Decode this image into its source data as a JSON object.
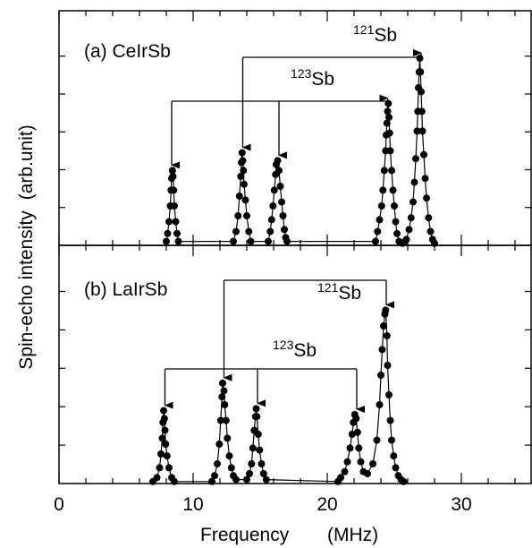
{
  "chart_data": {
    "type": "scatter",
    "xlabel": "Frequency",
    "xunit": "(MHz)",
    "ylabel": "Spin-echo intensity",
    "yunit": "(arb.unit)",
    "xlim": [
      0,
      35
    ],
    "xticks": [
      "0",
      "10",
      "20",
      "30"
    ],
    "ylim": [
      0,
      1
    ],
    "grid": false,
    "panels": [
      {
        "label": "(a) CeIrSb",
        "series": [
          {
            "values": [
              [
                8.0,
                0.02
              ],
              [
                8.1,
                0.06
              ],
              [
                8.2,
                0.12
              ],
              [
                8.3,
                0.2
              ],
              [
                8.35,
                0.28
              ],
              [
                8.4,
                0.34
              ],
              [
                8.45,
                0.38
              ],
              [
                8.5,
                0.35
              ],
              [
                8.55,
                0.28
              ],
              [
                8.6,
                0.2
              ],
              [
                8.7,
                0.12
              ],
              [
                8.8,
                0.06
              ],
              [
                8.9,
                0.02
              ],
              [
                13.0,
                0.02
              ],
              [
                13.2,
                0.07
              ],
              [
                13.35,
                0.15
              ],
              [
                13.45,
                0.25
              ],
              [
                13.55,
                0.35
              ],
              [
                13.6,
                0.42
              ],
              [
                13.65,
                0.47
              ],
              [
                13.7,
                0.43
              ],
              [
                13.75,
                0.38
              ],
              [
                13.8,
                0.31
              ],
              [
                13.9,
                0.23
              ],
              [
                14.0,
                0.15
              ],
              [
                14.15,
                0.07
              ],
              [
                14.3,
                0.02
              ],
              [
                15.6,
                0.02
              ],
              [
                15.75,
                0.07
              ],
              [
                15.85,
                0.13
              ],
              [
                15.95,
                0.2
              ],
              [
                16.05,
                0.28
              ],
              [
                16.15,
                0.36
              ],
              [
                16.2,
                0.41
              ],
              [
                16.3,
                0.43
              ],
              [
                16.4,
                0.38
              ],
              [
                16.5,
                0.3
              ],
              [
                16.6,
                0.22
              ],
              [
                16.7,
                0.15
              ],
              [
                16.8,
                0.08
              ],
              [
                16.9,
                0.04
              ],
              [
                17.0,
                0.02
              ],
              [
                23.6,
                0.02
              ],
              [
                23.75,
                0.07
              ],
              [
                23.9,
                0.13
              ],
              [
                24.05,
                0.2
              ],
              [
                24.15,
                0.28
              ],
              [
                24.25,
                0.38
              ],
              [
                24.35,
                0.48
              ],
              [
                24.4,
                0.56
              ],
              [
                24.45,
                0.62
              ],
              [
                24.5,
                0.68
              ],
              [
                24.55,
                0.72
              ],
              [
                24.6,
                0.65
              ],
              [
                24.65,
                0.57
              ],
              [
                24.7,
                0.48
              ],
              [
                24.8,
                0.38
              ],
              [
                24.9,
                0.28
              ],
              [
                25.0,
                0.2
              ],
              [
                25.1,
                0.12
              ],
              [
                25.2,
                0.06
              ],
              [
                25.35,
                0.02
              ],
              [
                25.6,
                0.01
              ],
              [
                25.8,
                0.02
              ],
              [
                25.9,
                0.03
              ],
              [
                26.1,
                0.08
              ],
              [
                26.25,
                0.14
              ],
              [
                26.4,
                0.22
              ],
              [
                26.5,
                0.32
              ],
              [
                26.6,
                0.44
              ],
              [
                26.7,
                0.58
              ],
              [
                26.75,
                0.68
              ],
              [
                26.8,
                0.8
              ],
              [
                26.85,
                0.88
              ],
              [
                26.9,
                0.95
              ],
              [
                26.95,
                0.88
              ],
              [
                27.0,
                0.78
              ],
              [
                27.05,
                0.68
              ],
              [
                27.1,
                0.58
              ],
              [
                27.2,
                0.46
              ],
              [
                27.3,
                0.34
              ],
              [
                27.4,
                0.24
              ],
              [
                27.55,
                0.14
              ],
              [
                27.7,
                0.07
              ],
              [
                27.85,
                0.03
              ],
              [
                28.0,
                0.01
              ]
            ]
          }
        ],
        "annotations": [
          {
            "text": "Sb",
            "sup": "121",
            "peaks": [
              13.7,
              27.0
            ]
          },
          {
            "text": "Sb",
            "sup": "123",
            "peaks": [
              8.4,
              16.4,
              24.5
            ]
          }
        ]
      },
      {
        "label": "(b) LaIrSb",
        "series": [
          {
            "values": [
              [
                7.0,
                0.01
              ],
              [
                7.3,
                0.03
              ],
              [
                7.5,
                0.08
              ],
              [
                7.6,
                0.15
              ],
              [
                7.7,
                0.23
              ],
              [
                7.75,
                0.31
              ],
              [
                7.8,
                0.37
              ],
              [
                7.85,
                0.33
              ],
              [
                7.9,
                0.27
              ],
              [
                7.95,
                0.2
              ],
              [
                8.05,
                0.14
              ],
              [
                8.2,
                0.08
              ],
              [
                8.4,
                0.03
              ],
              [
                8.6,
                0.01
              ],
              [
                11.4,
                0.01
              ],
              [
                11.6,
                0.04
              ],
              [
                11.8,
                0.1
              ],
              [
                11.95,
                0.2
              ],
              [
                12.05,
                0.32
              ],
              [
                12.15,
                0.44
              ],
              [
                12.2,
                0.51
              ],
              [
                12.3,
                0.47
              ],
              [
                12.35,
                0.4
              ],
              [
                12.45,
                0.32
              ],
              [
                12.55,
                0.23
              ],
              [
                12.7,
                0.14
              ],
              [
                12.85,
                0.08
              ],
              [
                13.0,
                0.04
              ],
              [
                13.2,
                0.02
              ],
              [
                14.0,
                0.02
              ],
              [
                14.2,
                0.05
              ],
              [
                14.35,
                0.1
              ],
              [
                14.45,
                0.18
              ],
              [
                14.55,
                0.27
              ],
              [
                14.65,
                0.34
              ],
              [
                14.7,
                0.38
              ],
              [
                14.75,
                0.34
              ],
              [
                14.85,
                0.25
              ],
              [
                14.95,
                0.17
              ],
              [
                15.1,
                0.1
              ],
              [
                15.25,
                0.05
              ],
              [
                15.45,
                0.02
              ],
              [
                20.8,
                0.01
              ],
              [
                21.0,
                0.03
              ],
              [
                21.3,
                0.06
              ],
              [
                21.5,
                0.11
              ],
              [
                21.7,
                0.18
              ],
              [
                21.85,
                0.25
              ],
              [
                21.95,
                0.31
              ],
              [
                22.05,
                0.35
              ],
              [
                22.15,
                0.33
              ],
              [
                22.25,
                0.26
              ],
              [
                22.35,
                0.18
              ],
              [
                22.5,
                0.11
              ],
              [
                22.7,
                0.06
              ],
              [
                23.0,
                0.05
              ],
              [
                23.4,
                0.1
              ],
              [
                23.7,
                0.22
              ],
              [
                23.9,
                0.4
              ],
              [
                24.0,
                0.55
              ],
              [
                24.1,
                0.68
              ],
              [
                24.2,
                0.8
              ],
              [
                24.3,
                0.86
              ],
              [
                24.35,
                0.88
              ],
              [
                24.45,
                0.75
              ],
              [
                24.5,
                0.6
              ],
              [
                24.6,
                0.45
              ],
              [
                24.7,
                0.32
              ],
              [
                24.8,
                0.22
              ],
              [
                24.95,
                0.14
              ],
              [
                25.1,
                0.08
              ],
              [
                25.3,
                0.04
              ],
              [
                25.5,
                0.02
              ],
              [
                25.7,
                0.01
              ]
            ]
          }
        ],
        "annotations": [
          {
            "text": "Sb",
            "sup": "121",
            "peaks": [
              12.3,
              24.4
            ]
          },
          {
            "text": "Sb",
            "sup": "123",
            "peaks": [
              7.9,
              14.8,
              22.2
            ]
          }
        ]
      }
    ]
  }
}
